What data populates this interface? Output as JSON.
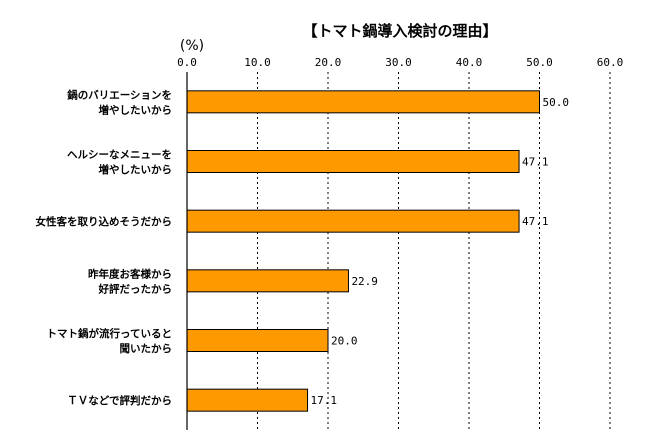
{
  "chart_data": {
    "type": "bar",
    "orientation": "horizontal",
    "title": "【トマト鍋導入検討の理由】",
    "unit_label": "(%)",
    "ticks": [
      "0.0",
      "10.0",
      "20.0",
      "30.0",
      "40.0",
      "50.0",
      "60.0"
    ],
    "xlim": [
      0,
      60
    ],
    "grid": true,
    "bar_color": "#FF9900",
    "categories": [
      [
        "鍋のバリエーションを",
        "増やしたいから"
      ],
      [
        "ヘルシーなメニューを",
        "増やしたいから"
      ],
      [
        "女性客を取り込めそうだから"
      ],
      [
        "昨年度お客様から",
        "好評だったから"
      ],
      [
        "トマト鍋が流行っていると",
        "聞いたから"
      ],
      [
        "ＴＶなどで評判だから"
      ]
    ],
    "values": [
      50.0,
      47.1,
      47.1,
      22.9,
      20.0,
      17.1
    ],
    "value_labels": [
      "50.0",
      "47.1",
      "47.1",
      "22.9",
      "20.0",
      "17.1"
    ]
  }
}
